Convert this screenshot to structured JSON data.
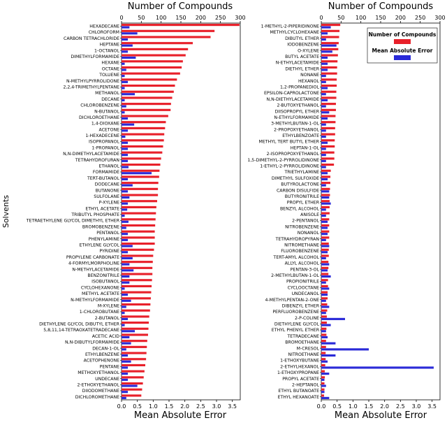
{
  "chart_data": [
    {
      "type": "bar",
      "panel": "left",
      "title": "Number of Compounds",
      "xlabel": "Mean Absolute Error",
      "ylabel": "Solvents",
      "top_axis_ticks": [
        "0",
        "50",
        "100",
        "150",
        "200",
        "250",
        "300"
      ],
      "bottom_axis_ticks": [
        "0.0",
        "0.5",
        "1.0",
        "1.5",
        "2.0",
        "2.5",
        "3.0",
        "3.5"
      ],
      "count_xlim": [
        0,
        300
      ],
      "mae_xlim": [
        0,
        3.75
      ],
      "categories": [
        "HEXADECANE",
        "CHLOROFORM",
        "CARBON TETRACHLORIDE",
        "HEPTANE",
        "1-OCTANOL",
        "DIMETHYLFORMAMIDE",
        "HEXANE",
        "OCTANE",
        "TOLUENE",
        "N-METHYLPYRROLIDONE",
        "2,2,4-TRIMETHYLPENTANE",
        "METHANOL",
        "DECANE",
        "CHLOROBENZENE",
        "N-BUTANOL",
        "DICHLOROETHANE",
        "1,4-DIOXANE",
        "ACETONE",
        "1-HEXADECENE",
        "ISOPROPANOL",
        "1-PROPANOL",
        "N,N-DIMETHYLACETAMIDE",
        "TETRAHYDROFURAN",
        "ETHANOL",
        "FORMAMIDE",
        "TERT-BUTANOL",
        "DODECANE",
        "BUTANONE",
        "SULFOLANE",
        "P-XYLENE",
        "ETHYL ACETATE",
        "TRIBUTYL PHOSPHATE",
        "TETRAETHYLENE GLYCOL DIMETHYL ETHER",
        "BROMOBENZENE",
        "PENTANOL",
        "PHENYLAMINE",
        "ETHYLENE GLYCOL",
        "PYRIDINE",
        "PROPYLENE CARBONATE",
        "4-FORMYLMORPHOLINE",
        "N-METHYLACETAMIDE",
        "BENZONITRILE",
        "ISOBUTANOL",
        "CYCLOHEXANONE",
        "METHYL ACETATE",
        "N-METHYLFORMAMIDE",
        "M-XYLENE",
        "1-CHLOROBUTANE",
        "2-BUTANOL",
        "DIETHYLENE GLYCOL DIBUTYL ETHER",
        "5,8,11,14-TETRAOXATETRADECANE",
        "ACETIC ACID",
        "N,N-DIBUTYLFORMAMIDE",
        "DECAN-1-OL",
        "ETHYLBENZENE",
        "ACETOPHENONE",
        "PENTANE",
        "METHOXYETHANOL",
        "UNDECANE",
        "2-ETHOXYETHANOL",
        "DIIODOMETHANE",
        "DICHLOROMETHANE"
      ],
      "series": [
        {
          "name": "Number of Compounds",
          "axis": "top",
          "color": "#e8202a",
          "values": [
            298,
            235,
            225,
            180,
            168,
            162,
            155,
            152,
            148,
            140,
            135,
            132,
            128,
            125,
            124,
            118,
            112,
            110,
            108,
            107,
            105,
            103,
            100,
            98,
            96,
            95,
            93,
            92,
            92,
            90,
            88,
            87,
            86,
            85,
            84,
            84,
            84,
            82,
            80,
            79,
            78,
            78,
            77,
            76,
            75,
            74,
            73,
            72,
            70,
            69,
            68,
            67,
            65,
            64,
            63,
            62,
            60,
            58,
            56,
            54,
            52,
            50
          ]
        },
        {
          "name": "Mean Absolute Error",
          "axis": "bottom",
          "color": "#2a2ad8",
          "values": [
            0.25,
            0.5,
            0.2,
            0.35,
            0.2,
            0.45,
            0.1,
            0.15,
            0.1,
            0.2,
            0.1,
            0.42,
            0.1,
            0.15,
            0.1,
            0.2,
            0.4,
            0.2,
            0.12,
            0.2,
            0.2,
            0.2,
            0.2,
            0.22,
            0.95,
            0.2,
            0.35,
            0.2,
            0.25,
            0.2,
            0.18,
            0.1,
            0.22,
            0.15,
            0.2,
            0.2,
            0.35,
            0.2,
            0.35,
            0.25,
            0.38,
            0.25,
            0.25,
            0.1,
            0.2,
            0.3,
            0.15,
            0.1,
            0.2,
            0.1,
            0.42,
            0.25,
            0.3,
            0.15,
            0.2,
            0.3,
            0.2,
            0.2,
            0.2,
            0.5,
            0.2,
            0.15
          ]
        }
      ]
    },
    {
      "type": "bar",
      "panel": "right",
      "title": "Number of Compounds",
      "xlabel": "Mean Absolute Error",
      "top_axis_ticks": [
        "0",
        "50",
        "100",
        "150",
        "200",
        "250",
        "300"
      ],
      "bottom_axis_ticks": [
        "0.0",
        "0.5",
        "1.0",
        "1.5",
        "2.0",
        "2.5",
        "3.0",
        "3.5"
      ],
      "count_xlim": [
        0,
        300
      ],
      "mae_xlim": [
        0,
        3.75
      ],
      "legend": {
        "position": "top-right",
        "entries": [
          "Number of Compounds",
          "Mean Absolute Error"
        ]
      },
      "categories": [
        "1-METHYL-2-PIPERIDINONE",
        "METHYLCYCLOHEXANE",
        "DIBUTYL ETHER",
        "IODOBENZENE",
        "O-XYLENE",
        "BUTYL ACETATE",
        "N-ETHYLACETAMIDE",
        "DIETHYL ETHER",
        "NONANE",
        "HEXANOL",
        "1,2-PROPANEDIOL",
        "EPSILON-CAPROLACTONE",
        "N,N-DIETHYLACETAMIDE",
        "2-BUTOXYETHANOL",
        "DIISOPROPYL ETHER",
        "N-ETHYLFORMAMIDE",
        "3-METHYLBUTAN-1-OL",
        "2-PROPOXYETHANOL",
        "ETHYLBENZOATE",
        "METHYL TERT BUTYL ETHER",
        "HEPTAN-1-OL",
        "2-ISOPROPOXYETHANOL",
        "1,5-DIMETHYL-2-PYRROLIDINONE",
        "1-ETHYL-2-PYRROLIDINONE",
        "TRIETHYLAMINE",
        "DIMETHYL SULFOXIDE",
        "BUTYROLACTONE",
        "CARBON DISULFIDE",
        "BUTYRONITRILE",
        "PROPYL ETHER",
        "BENZYL ALCOHOL",
        "ANISOLE",
        "2-PENTANOL",
        "NITROBENZENE",
        "NONANOL",
        "TETRAHYDROPYRAN",
        "NITROMETHANE",
        "FLUOROBENZENE",
        "TERT-AMYL ALCOHOL",
        "ALLYL ALCOHOL",
        "PENTAN-3-OL",
        "2-METHYLBUTAN-1-OL",
        "PROPIONITRILE",
        "CYCLOOCTANE",
        "UNDECANOL",
        "4-METHYLPENTAN-2-ONE",
        "DIBENZYL ETHER",
        "PERFLUOROBENZENE",
        "2-P-COLINE",
        "DIETHYLENE GLYCOL",
        "ETHYL PHENYL ETHER",
        "TETRADECANE",
        "BROMOETHANE",
        "M-CRESOL",
        "NITROETHANE",
        "1-ETHOXYBUTANE",
        "2-ETHYLHEXANOL",
        "1-ETHOXYPROPANE",
        "PROPYL ACETATE",
        "2-HEPTANOL",
        "ETHYL BUTANOATE",
        "ETHYL HEXANOATE"
      ],
      "series": [
        {
          "name": "Number of Compounds",
          "axis": "top",
          "color": "#e8202a",
          "values": [
            48,
            46,
            45,
            44,
            43,
            42,
            41,
            40,
            40,
            39,
            39,
            38,
            38,
            37,
            37,
            36,
            36,
            35,
            35,
            34,
            34,
            33,
            33,
            32,
            24,
            23,
            23,
            22,
            22,
            21,
            21,
            21,
            20,
            20,
            20,
            20,
            19,
            19,
            19,
            18,
            18,
            18,
            17,
            17,
            16,
            16,
            15,
            15,
            14,
            14,
            13,
            13,
            12,
            12,
            11,
            11,
            10,
            9,
            9,
            8,
            8,
            7
          ]
        },
        {
          "name": "Mean Absolute Error",
          "axis": "bottom",
          "color": "#2a2ad8",
          "values": [
            0.3,
            0.2,
            0.15,
            0.48,
            0.35,
            0.2,
            0.2,
            0.2,
            0.15,
            0.15,
            0.2,
            0.15,
            0.2,
            0.15,
            0.25,
            0.2,
            0.15,
            0.15,
            0.15,
            0.2,
            0.15,
            0.15,
            0.15,
            0.15,
            0.2,
            0.2,
            0.15,
            0.25,
            0.25,
            0.3,
            0.15,
            0.15,
            0.2,
            0.2,
            0.2,
            0.15,
            0.25,
            0.2,
            0.15,
            0.25,
            0.2,
            0.3,
            0.15,
            0.25,
            0.2,
            0.15,
            0.25,
            0.15,
            0.75,
            0.3,
            0.15,
            0.2,
            0.45,
            1.5,
            0.45,
            0.2,
            3.55,
            0.25,
            0.1,
            0.15,
            0.1,
            0.25
          ]
        }
      ]
    }
  ]
}
